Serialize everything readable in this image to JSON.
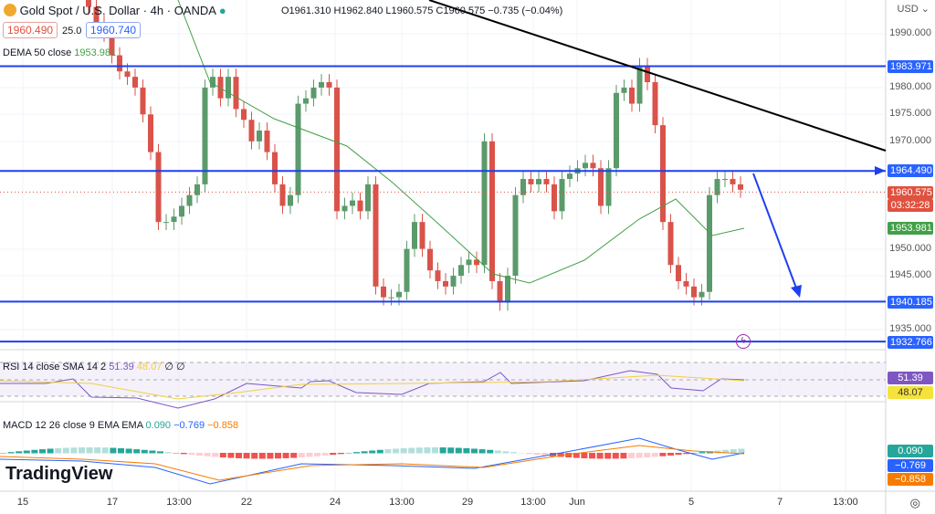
{
  "header": {
    "title": "Gold Spot / U.S. Dollar · 4h · OANDA",
    "ohlc": "O1961.310 H1962.840 L1960.575 C1960.575 −0.735 (−0.04%)",
    "bid": "1960.490",
    "spread": "25.0",
    "ask": "1960.740",
    "dema_label": "DEMA 50 close",
    "dema_value": "1953.981"
  },
  "rsi": {
    "label": "RSI 14 close SMA 14 2",
    "rsi_value": "51.39",
    "sma_value": "48.07",
    "extra": "∅ ∅"
  },
  "macd": {
    "label": "MACD 12 26 close 9 EMA EMA",
    "hist_value": "0.090",
    "macd_value": "−0.769",
    "signal_value": "−0.858"
  },
  "price_axis": {
    "currency": "USD",
    "ticks": [
      "1990.000",
      "1980.000",
      "1975.000",
      "1970.000",
      "1950.000",
      "1945.000",
      "1935.000"
    ],
    "labels": [
      {
        "text": "1983.971",
        "color": "#2962ff"
      },
      {
        "text": "1964.490",
        "color": "#2962ff"
      },
      {
        "text": "1960.575",
        "color": "#e0513f"
      },
      {
        "text": "03:32:28",
        "color": "#e0513f"
      },
      {
        "text": "1953.981",
        "color": "#43a047"
      },
      {
        "text": "1940.185",
        "color": "#2962ff"
      },
      {
        "text": "1932.766",
        "color": "#2962ff"
      }
    ],
    "rsi_labels": [
      "51.39",
      "48.07"
    ],
    "macd_labels": [
      "0.090",
      "−0.769",
      "−0.858"
    ]
  },
  "time_axis": [
    "15",
    "17",
    "13:00",
    "22",
    "24",
    "13:00",
    "29",
    "13:00",
    "Jun",
    "5",
    "7",
    "13:00"
  ],
  "branding": "TradingView",
  "chart_data": {
    "type": "candlestick",
    "ylim": [
      1930,
      1995
    ],
    "closes": [
      1995,
      1992,
      1990,
      1986,
      1983,
      1982,
      1980,
      1975,
      1968,
      1955,
      1955,
      1956,
      1958,
      1960,
      1962,
      1980,
      1982,
      1978,
      1982,
      1976,
      1974,
      1970,
      1972,
      1968,
      1962,
      1958,
      1960,
      1977,
      1978,
      1980,
      1981,
      1980,
      1957,
      1958,
      1959,
      1957,
      1962,
      1943,
      1941,
      1941,
      1942,
      1950,
      1955,
      1950,
      1946,
      1944,
      1943,
      1945,
      1947,
      1948,
      1947,
      1970,
      1944,
      1940,
      1945,
      1960,
      1963,
      1962,
      1963,
      1962,
      1957,
      1963,
      1964,
      1965,
      1966,
      1965,
      1958,
      1965,
      1979,
      1980,
      1977,
      1984,
      1981,
      1973,
      1955,
      1947,
      1944,
      1943,
      1941,
      1942,
      1960,
      1963,
      1963,
      1962,
      1961
    ],
    "horizontal_levels": [
      1983.971,
      1964.49,
      1940.185,
      1932.766
    ],
    "current_price": 1960.575,
    "dema": 1953.981
  },
  "colors": {
    "up": "#5b9a6b",
    "down": "#d9534a",
    "level": "#1e3ff0"
  }
}
